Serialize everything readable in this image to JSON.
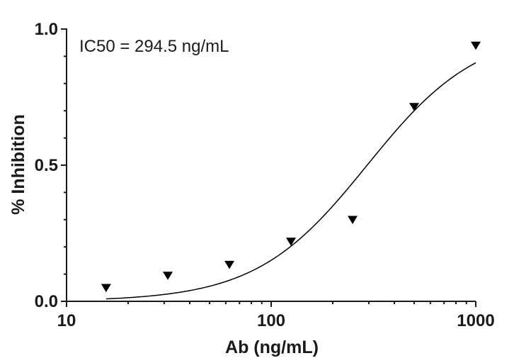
{
  "chart_data": {
    "type": "scatter",
    "title": "",
    "xlabel": "Ab (ng/mL)",
    "ylabel": "% Inhibition",
    "xscale": "log",
    "xlim": [
      10,
      1000
    ],
    "ylim": [
      0,
      1.0
    ],
    "x_ticks": [
      {
        "value": 10,
        "label": "10"
      },
      {
        "value": 100,
        "label": "100"
      },
      {
        "value": 1000,
        "label": "1000"
      }
    ],
    "y_ticks": [
      {
        "value": 0,
        "label": "0.0"
      },
      {
        "value": 0.5,
        "label": "0.5"
      },
      {
        "value": 1.0,
        "label": "1.0"
      }
    ],
    "annotation": "IC50 = 294.5 ng/mL",
    "marker": "triangle-down",
    "points": [
      {
        "x": 15.6,
        "y": 0.05
      },
      {
        "x": 31.25,
        "y": 0.095
      },
      {
        "x": 62.5,
        "y": 0.135
      },
      {
        "x": 125,
        "y": 0.22
      },
      {
        "x": 250,
        "y": 0.3
      },
      {
        "x": 500,
        "y": 0.715
      },
      {
        "x": 1000,
        "y": 0.94
      }
    ],
    "fit": {
      "type": "sigmoid",
      "ic50": 294.5,
      "bottom": 0,
      "top": 1.0,
      "hill": 1.6,
      "x_range": [
        15.6,
        1000
      ]
    },
    "grid": false,
    "legend": "none",
    "colors": {
      "marker": "#000000",
      "line": "#000000",
      "axis": "#1a1a1a"
    }
  }
}
